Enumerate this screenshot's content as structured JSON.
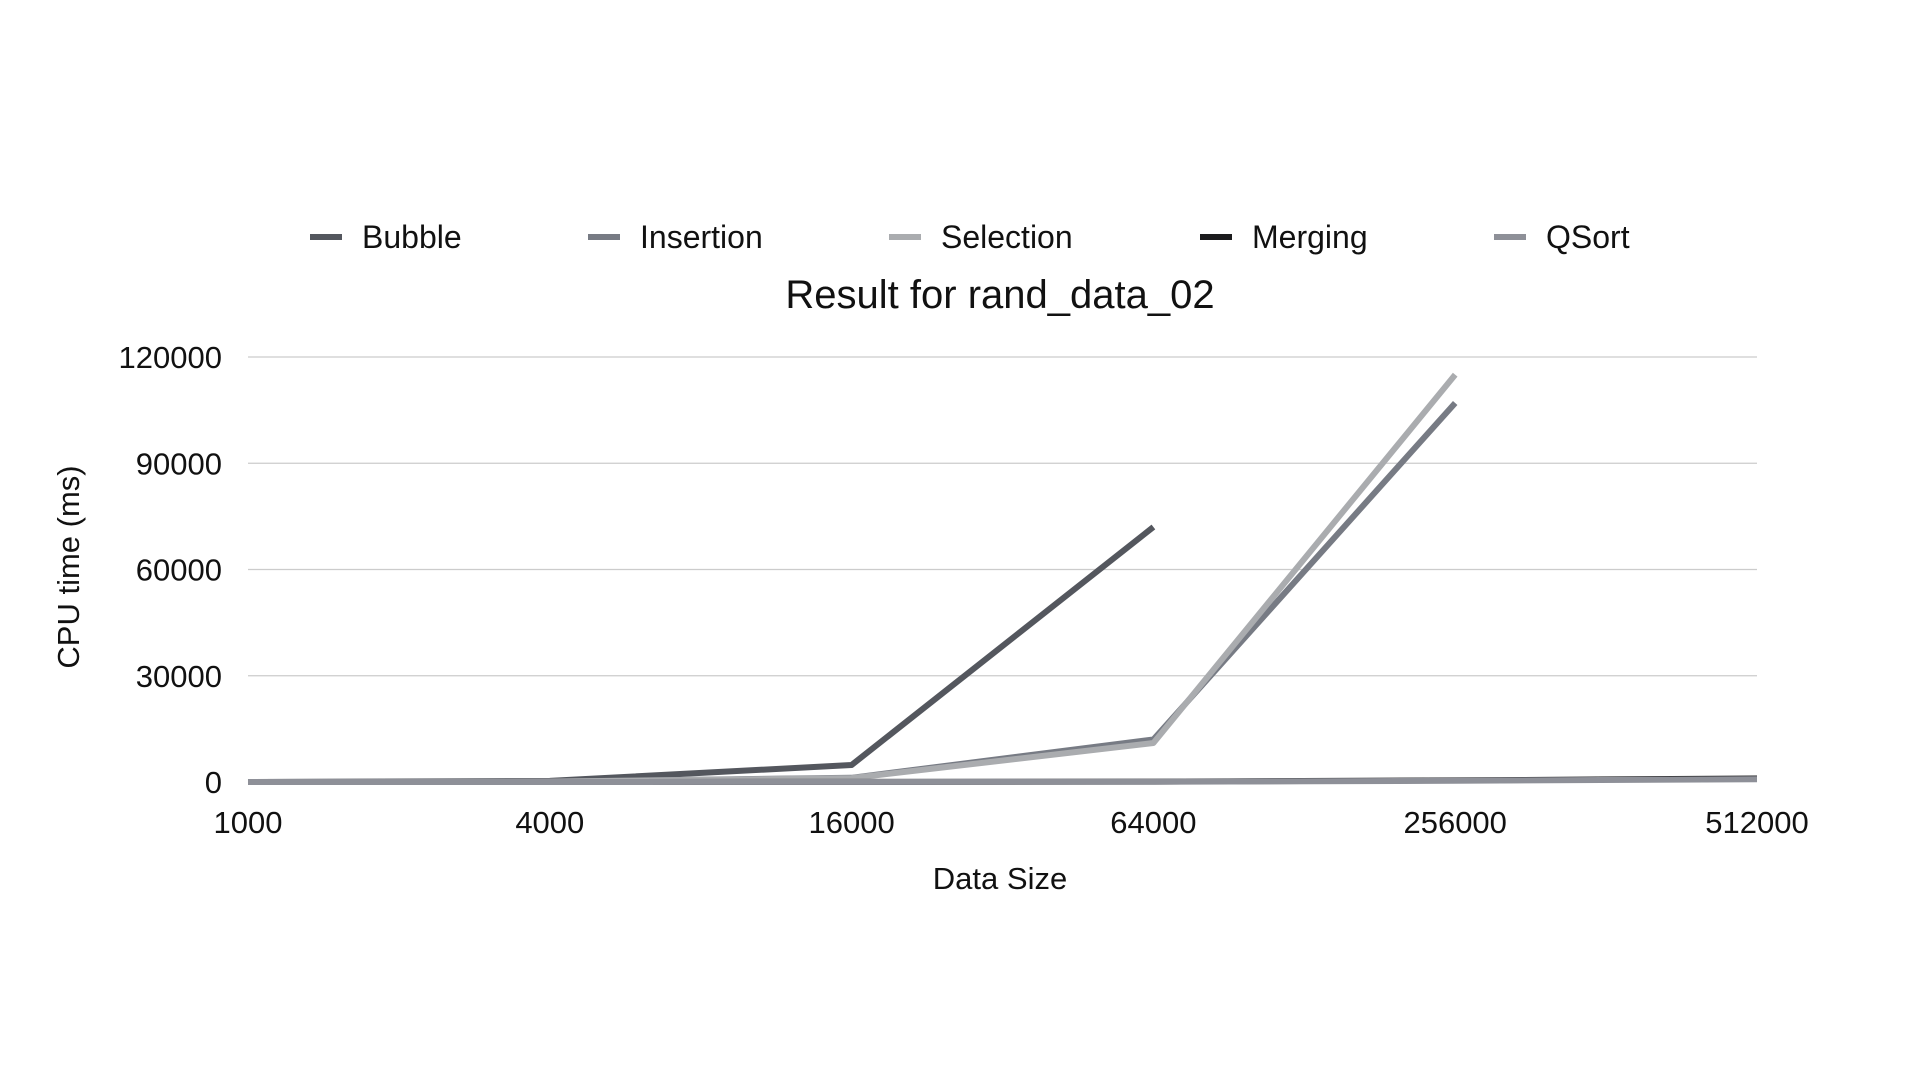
{
  "chart_data": {
    "type": "line",
    "title": "Result for rand_data_02",
    "xlabel": "Data Size",
    "ylabel": "CPU time (ms)",
    "categories": [
      "1000",
      "4000",
      "16000",
      "64000",
      "256000",
      "512000"
    ],
    "ylim": [
      0,
      120000
    ],
    "yticks": [
      "0",
      "30000",
      "60000",
      "90000",
      "120000"
    ],
    "grid": true,
    "legend_position": "top",
    "series": [
      {
        "name": "Bubble",
        "color": "#54575e",
        "values": [
          0,
          300,
          4800,
          72000,
          null,
          null
        ]
      },
      {
        "name": "Insertion",
        "color": "#777b84",
        "values": [
          0,
          100,
          1200,
          12000,
          107000,
          null
        ]
      },
      {
        "name": "Selection",
        "color": "#aaacaf",
        "values": [
          0,
          100,
          1100,
          11000,
          115000,
          null
        ]
      },
      {
        "name": "Merging",
        "color": "#1c1c1e",
        "values": [
          0,
          5,
          20,
          100,
          450,
          1000
        ]
      },
      {
        "name": "QSort",
        "color": "#8e9098",
        "values": [
          0,
          5,
          15,
          80,
          350,
          800
        ]
      }
    ]
  }
}
